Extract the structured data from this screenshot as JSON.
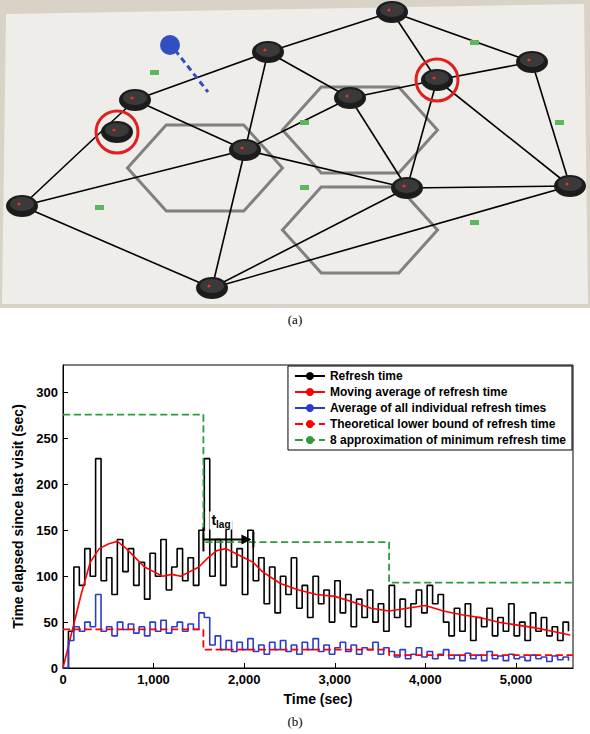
{
  "panel_labels": [
    "(a)",
    "(b)"
  ],
  "chart_data": {
    "type": "line",
    "xlabel": "Time (sec)",
    "ylabel": "Time elapsed since last visit (sec)",
    "xlim": [
      0,
      5630
    ],
    "xticks": [
      0,
      1000,
      2000,
      3000,
      4000,
      5000
    ],
    "ylim": [
      0,
      330
    ],
    "yticks": [
      0,
      50,
      100,
      150,
      200,
      250,
      300
    ],
    "grid": false,
    "legend": "upper right",
    "x": [
      0,
      60,
      120,
      180,
      240,
      300,
      360,
      420,
      480,
      540,
      600,
      660,
      720,
      780,
      840,
      900,
      960,
      1020,
      1080,
      1140,
      1200,
      1260,
      1320,
      1380,
      1440,
      1500,
      1560,
      1620,
      1680,
      1740,
      1800,
      1860,
      1920,
      1980,
      2040,
      2100,
      2160,
      2220,
      2280,
      2340,
      2400,
      2460,
      2520,
      2580,
      2640,
      2700,
      2760,
      2820,
      2880,
      2940,
      3000,
      3060,
      3120,
      3180,
      3240,
      3300,
      3360,
      3420,
      3480,
      3540,
      3600,
      3660,
      3720,
      3780,
      3840,
      3900,
      3960,
      4020,
      4080,
      4140,
      4200,
      4260,
      4320,
      4380,
      4440,
      4500,
      4560,
      4620,
      4680,
      4740,
      4800,
      4860,
      4920,
      4980,
      5040,
      5100,
      5160,
      5220,
      5280,
      5340,
      5400,
      5460,
      5520,
      5580
    ],
    "series": [
      {
        "name": "Refresh time",
        "type": "step",
        "color": "#000000",
        "line_style": "solid",
        "values": [
          0,
          40,
          110,
          90,
          130,
          100,
          228,
          95,
          120,
          80,
          140,
          105,
          130,
          90,
          115,
          75,
          125,
          100,
          140,
          85,
          110,
          130,
          95,
          120,
          90,
          150,
          228,
          100,
          140,
          90,
          160,
          110,
          130,
          80,
          150,
          95,
          120,
          70,
          110,
          60,
          100,
          80,
          120,
          65,
          90,
          55,
          100,
          70,
          85,
          50,
          95,
          60,
          80,
          45,
          75,
          55,
          85,
          50,
          70,
          40,
          90,
          55,
          75,
          45,
          70,
          85,
          60,
          90,
          70,
          80,
          50,
          35,
          65,
          40,
          70,
          30,
          55,
          45,
          65,
          35,
          55,
          40,
          70,
          35,
          50,
          30,
          60,
          40,
          55,
          35,
          45,
          30,
          50,
          40
        ]
      },
      {
        "name": "Moving average of refresh time",
        "type": "line",
        "color": "#ff0000",
        "line_style": "solid",
        "x": [
          0,
          100,
          200,
          300,
          400,
          500,
          600,
          700,
          800,
          900,
          1000,
          1100,
          1200,
          1300,
          1400,
          1500,
          1600,
          1700,
          1800,
          1900,
          2000,
          2100,
          2200,
          2400,
          2600,
          2800,
          3000,
          3200,
          3400,
          3600,
          3800,
          4000,
          4200,
          4400,
          4600,
          4800,
          5000,
          5200,
          5400,
          5600
        ],
        "values": [
          0,
          40,
          80,
          115,
          130,
          135,
          138,
          130,
          120,
          110,
          105,
          100,
          102,
          100,
          105,
          110,
          120,
          128,
          130,
          125,
          120,
          115,
          105,
          92,
          85,
          80,
          78,
          72,
          65,
          62,
          65,
          68,
          62,
          58,
          55,
          50,
          47,
          44,
          40,
          36
        ]
      },
      {
        "name": "Average of all individual refresh times",
        "type": "step",
        "color": "#2b3bd0",
        "line_style": "solid",
        "values": [
          0,
          30,
          45,
          40,
          50,
          45,
          80,
          40,
          45,
          35,
          50,
          42,
          48,
          38,
          45,
          35,
          50,
          40,
          52,
          38,
          45,
          50,
          40,
          48,
          42,
          60,
          55,
          25,
          35,
          20,
          30,
          18,
          28,
          20,
          32,
          18,
          25,
          15,
          28,
          20,
          30,
          18,
          25,
          15,
          28,
          20,
          32,
          18,
          25,
          15,
          22,
          28,
          18,
          25,
          15,
          22,
          20,
          28,
          15,
          22,
          18,
          12,
          20,
          10,
          15,
          22,
          12,
          18,
          10,
          15,
          20,
          10,
          14,
          8,
          16,
          10,
          14,
          8,
          18,
          10,
          13,
          8,
          15,
          10,
          12,
          8,
          14,
          10,
          12,
          7,
          13,
          9,
          12,
          8
        ]
      },
      {
        "name": "Theoretical lower bound of refresh time",
        "type": "step",
        "color": "#ff0000",
        "line_style": "dashed",
        "x": [
          0,
          1550,
          3600,
          5630
        ],
        "values": [
          42,
          20,
          14,
          14
        ]
      },
      {
        "name": "8 approximation of minimum refresh time",
        "type": "step",
        "color": "#2e9a3e",
        "line_style": "dashed",
        "x": [
          0,
          1550,
          3600,
          5630
        ],
        "values": [
          276,
          137,
          93,
          93
        ]
      }
    ],
    "annotations": [
      {
        "text": "t",
        "subscript": "lag",
        "x": [
          1550,
          2080
        ],
        "y": 140
      }
    ]
  }
}
